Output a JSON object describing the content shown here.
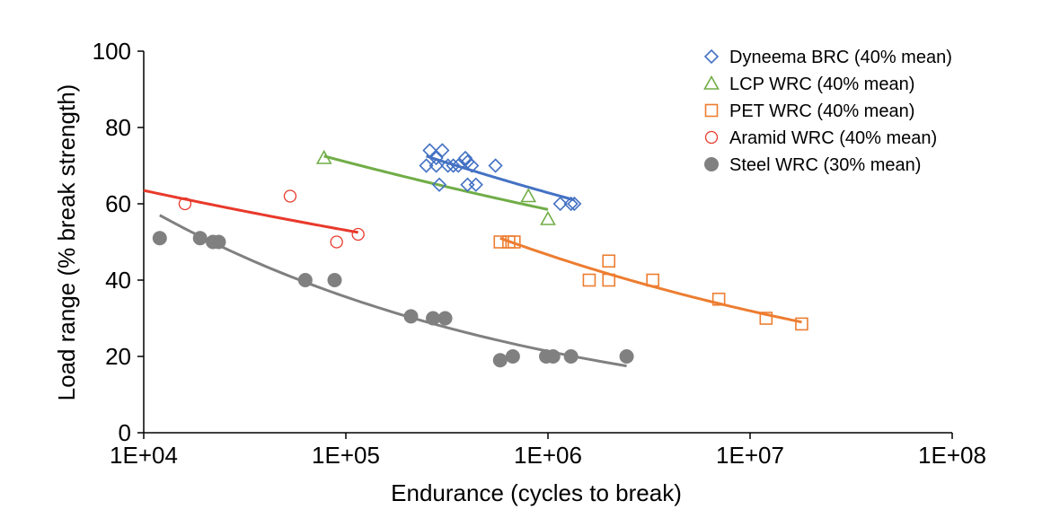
{
  "chart_data": {
    "type": "scatter",
    "title": "",
    "xlabel": "Endurance (cycles to break)",
    "ylabel": "Load range (% break strength)",
    "xscale": "log",
    "xlim": [
      10000,
      100000000
    ],
    "ylim": [
      0,
      100
    ],
    "x_ticks": [
      10000,
      100000,
      1000000,
      10000000,
      100000000
    ],
    "x_tick_labels": [
      "1E+04",
      "1E+05",
      "1E+06",
      "1E+07",
      "1E+08"
    ],
    "y_ticks": [
      0,
      20,
      40,
      60,
      80,
      100
    ],
    "y_tick_labels": [
      "0",
      "20",
      "40",
      "60",
      "80",
      "100"
    ],
    "grid": false,
    "legend_position": "top-right",
    "series": [
      {
        "name": "Dyneema BRC (40% mean)",
        "marker": "diamond-open",
        "color": "#4472C4",
        "points": [
          [
            250000,
            70
          ],
          [
            260000,
            74
          ],
          [
            280000,
            72
          ],
          [
            280000,
            70
          ],
          [
            290000,
            65
          ],
          [
            300000,
            74
          ],
          [
            320000,
            70
          ],
          [
            340000,
            70
          ],
          [
            360000,
            70
          ],
          [
            390000,
            72
          ],
          [
            400000,
            71
          ],
          [
            400000,
            65
          ],
          [
            420000,
            70
          ],
          [
            440000,
            65
          ],
          [
            550000,
            70
          ],
          [
            1150000,
            60
          ],
          [
            1300000,
            60
          ],
          [
            1350000,
            60
          ]
        ],
        "trend": {
          "kind": "power",
          "x_start": 250000,
          "x_end": 1350000,
          "y_start": 72.5,
          "y_end": 61
        }
      },
      {
        "name": "LCP WRC (40% mean)",
        "marker": "triangle-open",
        "color": "#70AD47",
        "points": [
          [
            78000,
            72
          ],
          [
            800000,
            62
          ],
          [
            1000000,
            56
          ]
        ],
        "trend": {
          "kind": "power",
          "x_start": 78000,
          "x_end": 1000000,
          "y_start": 72.5,
          "y_end": 58.5
        }
      },
      {
        "name": "PET WRC (40% mean)",
        "marker": "square-open",
        "color": "#ED7D31",
        "points": [
          [
            580000,
            50
          ],
          [
            640000,
            50
          ],
          [
            680000,
            50
          ],
          [
            1600000,
            40
          ],
          [
            2000000,
            45
          ],
          [
            2000000,
            40
          ],
          [
            3300000,
            40
          ],
          [
            7000000,
            35
          ],
          [
            12000000,
            30
          ],
          [
            18000000,
            28.5
          ]
        ],
        "trend": {
          "kind": "power",
          "x_start": 580000,
          "x_end": 18000000,
          "y_start": 51,
          "y_end": 29
        }
      },
      {
        "name": "Aramid WRC (40% mean)",
        "marker": "circle-open",
        "color": "#E8392B",
        "points": [
          [
            16000,
            60
          ],
          [
            53000,
            62
          ],
          [
            90000,
            50
          ],
          [
            115000,
            52
          ]
        ],
        "trend": {
          "kind": "power",
          "x_start": 10000,
          "x_end": 115000,
          "y_start": 63.5,
          "y_end": 52.5
        }
      },
      {
        "name": "Steel WRC (30% mean)",
        "marker": "circle-filled",
        "color": "#808080",
        "points": [
          [
            12000,
            51
          ],
          [
            19000,
            51
          ],
          [
            22000,
            50
          ],
          [
            23500,
            50
          ],
          [
            63000,
            40
          ],
          [
            88000,
            40
          ],
          [
            210000,
            30.5
          ],
          [
            270000,
            30
          ],
          [
            310000,
            30
          ],
          [
            580000,
            19
          ],
          [
            670000,
            20
          ],
          [
            980000,
            20
          ],
          [
            1060000,
            20
          ],
          [
            1300000,
            20
          ],
          [
            2450000,
            20
          ]
        ],
        "trend": {
          "kind": "power",
          "x_start": 12000,
          "x_end": 2450000,
          "y_start": 57,
          "y_end": 17.5
        }
      }
    ]
  }
}
